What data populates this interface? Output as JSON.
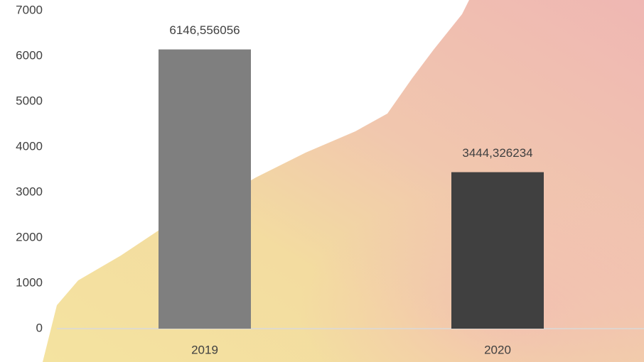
{
  "chart_data": {
    "type": "bar",
    "categories": [
      "2019",
      "2020"
    ],
    "values": [
      6146.556056,
      3444.326234
    ],
    "value_labels": [
      "6146,556056",
      "3444,326234"
    ],
    "colors": [
      "#7f7f7f",
      "#404040"
    ],
    "ylim": [
      0,
      7000
    ],
    "yticks": [
      0,
      1000,
      2000,
      3000,
      4000,
      5000,
      6000,
      7000
    ],
    "grid": false
  }
}
